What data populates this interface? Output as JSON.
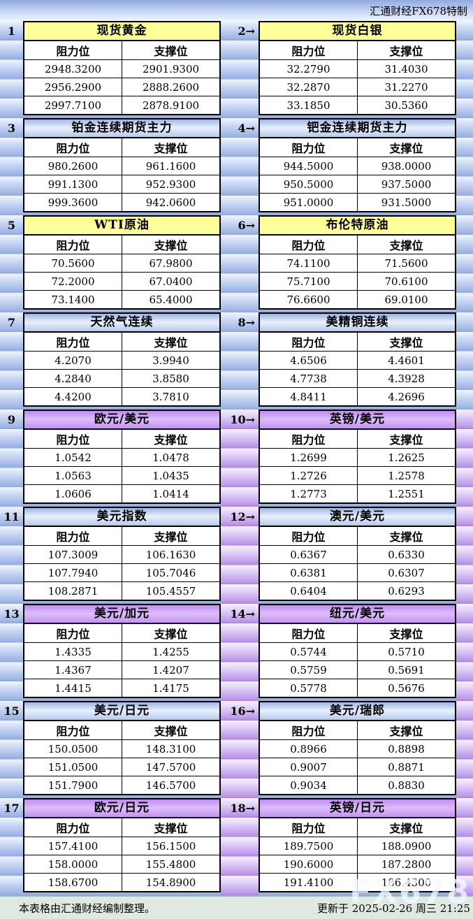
{
  "header": {
    "title": "汇通财经FX678特制"
  },
  "labels": {
    "resistance": "阻力位",
    "support": "支撑位"
  },
  "footer": {
    "source_note": "本表格由汇通财经编制整理。",
    "updated": "更新于 2025-02-26 周三 21:25",
    "watermark": "FX678"
  },
  "colors": {
    "yellow_header": "#FFFF99",
    "blue_header": "#A9C4EC",
    "purple_header": "#CC99FF",
    "stripe_blue": "#9DB4E4",
    "stripe_purple": "#BB97E9"
  },
  "chart_data": {
    "type": "table",
    "columns": [
      "阻力位",
      "支撑位"
    ],
    "tables": [
      {
        "index_label": "1",
        "name": "现货黄金",
        "header_color": "yellow",
        "resistance": [
          "2948.3200",
          "2956.2900",
          "2997.7100"
        ],
        "support": [
          "2901.9300",
          "2888.2600",
          "2878.9100"
        ]
      },
      {
        "index_label": "2→",
        "name": "现货白银",
        "header_color": "yellow",
        "resistance": [
          "32.2790",
          "32.2870",
          "33.1850"
        ],
        "support": [
          "31.4030",
          "31.2270",
          "30.5360"
        ]
      },
      {
        "index_label": "3",
        "name": "铂金连续期货主力",
        "header_color": "blue",
        "resistance": [
          "980.2600",
          "991.1300",
          "999.3600"
        ],
        "support": [
          "961.1600",
          "952.9300",
          "942.0600"
        ]
      },
      {
        "index_label": "4→",
        "name": "钯金连续期货主力",
        "header_color": "blue",
        "resistance": [
          "944.5000",
          "950.5000",
          "951.0000"
        ],
        "support": [
          "938.0000",
          "937.5000",
          "931.5000"
        ]
      },
      {
        "index_label": "5",
        "name": "WTI原油",
        "header_color": "yellow",
        "resistance": [
          "70.5600",
          "72.2000",
          "73.1400"
        ],
        "support": [
          "67.9800",
          "67.0400",
          "65.4000"
        ]
      },
      {
        "index_label": "6→",
        "name": "布伦特原油",
        "header_color": "yellow",
        "resistance": [
          "74.1100",
          "75.7100",
          "76.6600"
        ],
        "support": [
          "71.5600",
          "70.6100",
          "69.0100"
        ]
      },
      {
        "index_label": "7",
        "name": "天然气连续",
        "header_color": "blue",
        "resistance": [
          "4.2070",
          "4.2840",
          "4.4200"
        ],
        "support": [
          "3.9940",
          "3.8580",
          "3.7810"
        ]
      },
      {
        "index_label": "8→",
        "name": "美精铜连续",
        "header_color": "blue",
        "resistance": [
          "4.6506",
          "4.7738",
          "4.8411"
        ],
        "support": [
          "4.4601",
          "4.3928",
          "4.2696"
        ]
      },
      {
        "index_label": "9",
        "name": "欧元/美元",
        "header_color": "purple",
        "resistance": [
          "1.0542",
          "1.0563",
          "1.0606"
        ],
        "support": [
          "1.0478",
          "1.0435",
          "1.0414"
        ]
      },
      {
        "index_label": "10→",
        "name": "英镑/美元",
        "header_color": "purple",
        "resistance": [
          "1.2699",
          "1.2726",
          "1.2773"
        ],
        "support": [
          "1.2625",
          "1.2578",
          "1.2551"
        ]
      },
      {
        "index_label": "11",
        "name": "美元指数",
        "header_color": "blue",
        "resistance": [
          "107.3009",
          "107.7940",
          "108.2871"
        ],
        "support": [
          "106.1630",
          "105.7046",
          "105.4557"
        ]
      },
      {
        "index_label": "12→",
        "name": "澳元/美元",
        "header_color": "blue",
        "resistance": [
          "0.6367",
          "0.6381",
          "0.6404"
        ],
        "support": [
          "0.6330",
          "0.6307",
          "0.6293"
        ]
      },
      {
        "index_label": "13",
        "name": "美元/加元",
        "header_color": "purple",
        "resistance": [
          "1.4335",
          "1.4367",
          "1.4415"
        ],
        "support": [
          "1.4255",
          "1.4207",
          "1.4175"
        ]
      },
      {
        "index_label": "14→",
        "name": "纽元/美元",
        "header_color": "purple",
        "resistance": [
          "0.5744",
          "0.5759",
          "0.5778"
        ],
        "support": [
          "0.5710",
          "0.5691",
          "0.5676"
        ]
      },
      {
        "index_label": "15",
        "name": "美元/日元",
        "header_color": "blue",
        "resistance": [
          "150.0500",
          "151.0500",
          "151.7900"
        ],
        "support": [
          "148.3100",
          "147.5700",
          "146.5700"
        ]
      },
      {
        "index_label": "16→",
        "name": "美元/瑞郎",
        "header_color": "blue",
        "resistance": [
          "0.8966",
          "0.9007",
          "0.9034"
        ],
        "support": [
          "0.8898",
          "0.8871",
          "0.8830"
        ]
      },
      {
        "index_label": "17",
        "name": "欧元/日元",
        "header_color": "purple",
        "resistance": [
          "157.4100",
          "158.0000",
          "158.6700"
        ],
        "support": [
          "156.1500",
          "155.4800",
          "154.8900"
        ]
      },
      {
        "index_label": "18→",
        "name": "英镑/日元",
        "header_color": "purple",
        "resistance": [
          "189.7500",
          "190.6000",
          "191.4100"
        ],
        "support": [
          "188.0900",
          "187.2800",
          "186.4300"
        ]
      }
    ]
  }
}
